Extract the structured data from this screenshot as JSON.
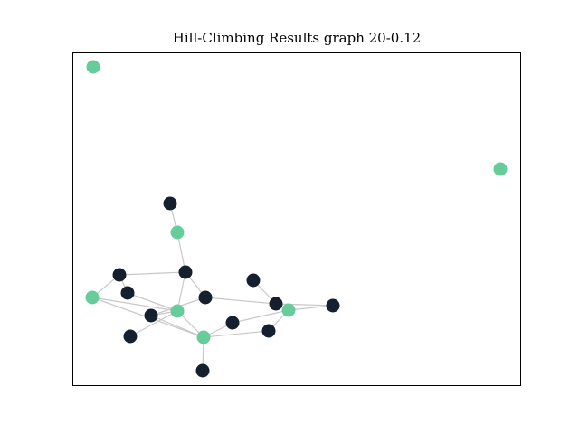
{
  "title": "Hill-Climbing Results graph 20-0.12",
  "colors": {
    "in_set": "#66cc99",
    "out_of_set": "#14202e",
    "edge": "#c8c8c8",
    "frame": "#000000"
  },
  "nodes": [
    {
      "id": "n1",
      "group": "in_set"
    },
    {
      "id": "n2",
      "group": "in_set"
    },
    {
      "id": "n3",
      "group": "out_of_set"
    },
    {
      "id": "n4",
      "group": "in_set"
    },
    {
      "id": "n5",
      "group": "out_of_set"
    },
    {
      "id": "n6",
      "group": "out_of_set"
    },
    {
      "id": "n7",
      "group": "out_of_set"
    },
    {
      "id": "n8",
      "group": "in_set"
    },
    {
      "id": "n9",
      "group": "out_of_set"
    },
    {
      "id": "n10",
      "group": "out_of_set"
    },
    {
      "id": "n11",
      "group": "out_of_set"
    },
    {
      "id": "n12",
      "group": "in_set"
    },
    {
      "id": "n13",
      "group": "out_of_set"
    },
    {
      "id": "n14",
      "group": "out_of_set"
    },
    {
      "id": "n15",
      "group": "out_of_set"
    },
    {
      "id": "n16",
      "group": "in_set"
    },
    {
      "id": "n17",
      "group": "out_of_set"
    },
    {
      "id": "n18",
      "group": "out_of_set"
    },
    {
      "id": "n19",
      "group": "in_set"
    },
    {
      "id": "n20",
      "group": "out_of_set"
    }
  ],
  "edges": [
    [
      "n3",
      "n4"
    ],
    [
      "n4",
      "n7"
    ],
    [
      "n5",
      "n7"
    ],
    [
      "n5",
      "n8"
    ],
    [
      "n5",
      "n9"
    ],
    [
      "n8",
      "n12"
    ],
    [
      "n7",
      "n10"
    ],
    [
      "n7",
      "n12"
    ],
    [
      "n6",
      "n11"
    ],
    [
      "n10",
      "n11"
    ],
    [
      "n11",
      "n16"
    ],
    [
      "n10",
      "n13"
    ],
    [
      "n13",
      "n12"
    ],
    [
      "n13",
      "n19"
    ],
    [
      "n12",
      "n15"
    ],
    [
      "n12",
      "n19"
    ],
    [
      "n9",
      "n12"
    ],
    [
      "n19",
      "n17"
    ],
    [
      "n19",
      "n20"
    ],
    [
      "n19",
      "n18"
    ],
    [
      "n18",
      "n16"
    ],
    [
      "n16",
      "n17"
    ],
    [
      "n16",
      "n11"
    ],
    [
      "n8",
      "n19"
    ]
  ]
}
